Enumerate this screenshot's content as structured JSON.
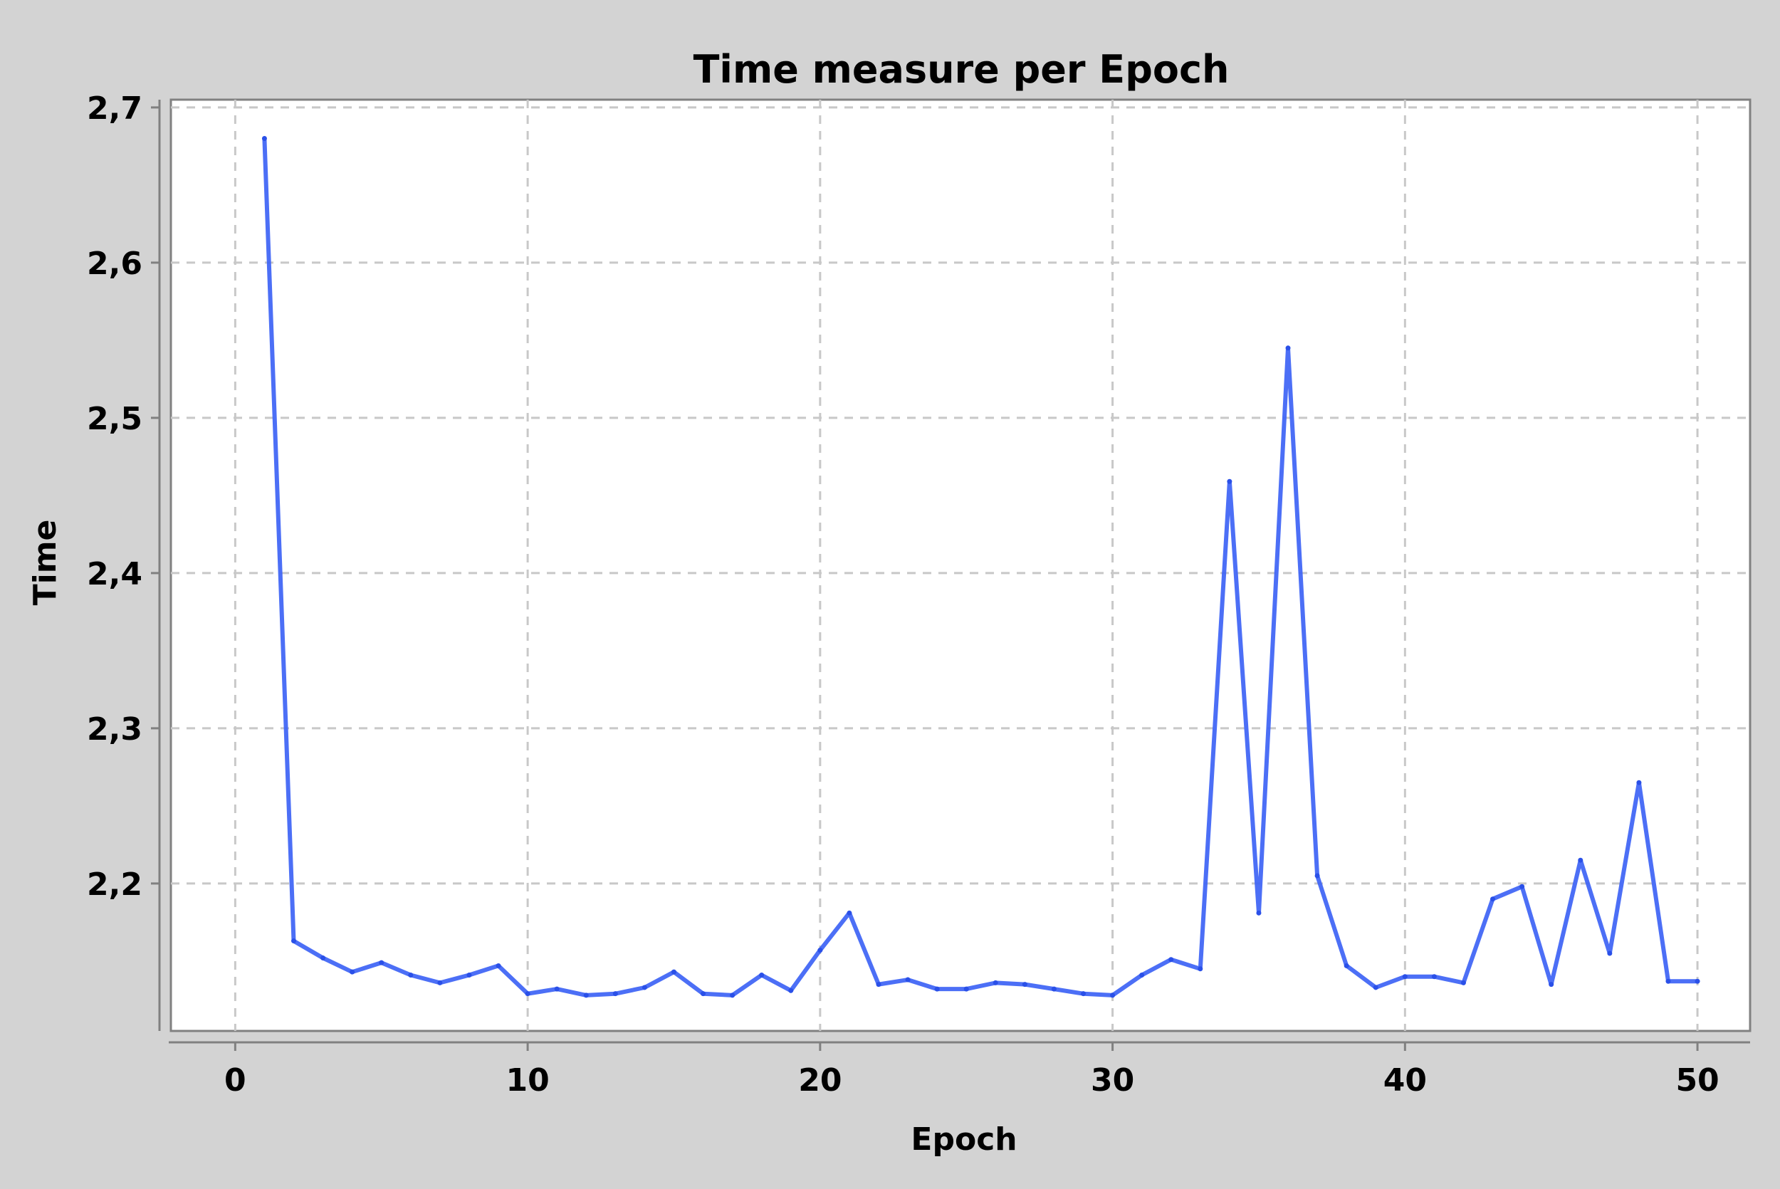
{
  "chart_data": {
    "type": "line",
    "title": "Time measure per Epoch",
    "xlabel": "Epoch",
    "ylabel": "Time",
    "xlim": [
      -2.2,
      51.8
    ],
    "ylim": [
      2.105,
      2.705
    ],
    "xticks": [
      0,
      10,
      20,
      30,
      40,
      50
    ],
    "xtick_labels": [
      "0",
      "10",
      "20",
      "30",
      "40",
      "50"
    ],
    "yticks": [
      2.2,
      2.3,
      2.4,
      2.5,
      2.6,
      2.7
    ],
    "ytick_labels": [
      "2,2",
      "2,3",
      "2,4",
      "2,5",
      "2,6",
      "2,7"
    ],
    "grid": true,
    "line_color": "#3d63f5",
    "series": [
      {
        "x": [
          1,
          2,
          3,
          4,
          5,
          6,
          7,
          8,
          9,
          10,
          11,
          12,
          13,
          14,
          15,
          16,
          17,
          18,
          19,
          20,
          21,
          22,
          23,
          24,
          25,
          26,
          27,
          28,
          29,
          30,
          31,
          32,
          33,
          34,
          35,
          36,
          37,
          38,
          39,
          40,
          41,
          42,
          43,
          44,
          45,
          46,
          47,
          48,
          49,
          50
        ],
        "values": [
          2.68,
          2.163,
          2.152,
          2.143,
          2.149,
          2.141,
          2.136,
          2.141,
          2.147,
          2.129,
          2.132,
          2.128,
          2.129,
          2.133,
          2.143,
          2.129,
          2.128,
          2.141,
          2.131,
          2.157,
          2.181,
          2.135,
          2.138,
          2.132,
          2.132,
          2.136,
          2.135,
          2.132,
          2.129,
          2.128,
          2.141,
          2.151,
          2.145,
          2.459,
          2.181,
          2.545,
          2.205,
          2.147,
          2.133,
          2.14,
          2.14,
          2.136,
          2.19,
          2.198,
          2.135,
          2.215,
          2.155,
          2.265,
          2.137,
          2.137
        ]
      }
    ]
  }
}
